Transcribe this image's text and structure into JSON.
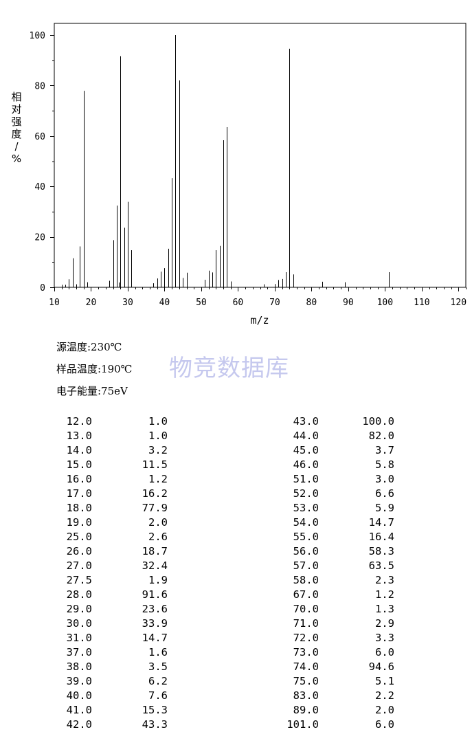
{
  "chart_data": {
    "type": "bar",
    "ylabel": "相对强度/%",
    "xlabel": "m/z",
    "xlim": [
      10,
      122
    ],
    "ylim": [
      0,
      105
    ],
    "xticks": [
      10,
      20,
      30,
      40,
      50,
      60,
      70,
      80,
      90,
      100,
      110,
      120
    ],
    "yticks": [
      0,
      20,
      40,
      60,
      80,
      100
    ],
    "grid": false,
    "peaks": [
      [
        12.0,
        1.0
      ],
      [
        13.0,
        1.0
      ],
      [
        14.0,
        3.2
      ],
      [
        15.0,
        11.5
      ],
      [
        16.0,
        1.2
      ],
      [
        17.0,
        16.2
      ],
      [
        18.0,
        77.9
      ],
      [
        19.0,
        2.0
      ],
      [
        25.0,
        2.6
      ],
      [
        26.0,
        18.7
      ],
      [
        27.0,
        32.4
      ],
      [
        27.5,
        1.9
      ],
      [
        28.0,
        91.6
      ],
      [
        29.0,
        23.6
      ],
      [
        30.0,
        33.9
      ],
      [
        31.0,
        14.7
      ],
      [
        37.0,
        1.6
      ],
      [
        38.0,
        3.5
      ],
      [
        39.0,
        6.2
      ],
      [
        40.0,
        7.6
      ],
      [
        41.0,
        15.3
      ],
      [
        42.0,
        43.3
      ],
      [
        43.0,
        100.0
      ],
      [
        44.0,
        82.0
      ],
      [
        45.0,
        3.7
      ],
      [
        46.0,
        5.8
      ],
      [
        51.0,
        3.0
      ],
      [
        52.0,
        6.6
      ],
      [
        53.0,
        5.9
      ],
      [
        54.0,
        14.7
      ],
      [
        55.0,
        16.4
      ],
      [
        56.0,
        58.3
      ],
      [
        57.0,
        63.5
      ],
      [
        58.0,
        2.3
      ],
      [
        67.0,
        1.2
      ],
      [
        70.0,
        1.3
      ],
      [
        71.0,
        2.9
      ],
      [
        72.0,
        3.3
      ],
      [
        73.0,
        6.0
      ],
      [
        74.0,
        94.6
      ],
      [
        75.0,
        5.1
      ],
      [
        83.0,
        2.2
      ],
      [
        89.0,
        2.0
      ],
      [
        101.0,
        6.0
      ]
    ]
  },
  "conditions": {
    "source_temp": "源温度:230℃",
    "sample_temp": "样品温度:190℃",
    "electron_energy": "电子能量:75eV"
  },
  "watermark": "物竞数据库",
  "table": {
    "left": [
      [
        "12.0",
        "1.0"
      ],
      [
        "13.0",
        "1.0"
      ],
      [
        "14.0",
        "3.2"
      ],
      [
        "15.0",
        "11.5"
      ],
      [
        "16.0",
        "1.2"
      ],
      [
        "17.0",
        "16.2"
      ],
      [
        "18.0",
        "77.9"
      ],
      [
        "19.0",
        "2.0"
      ],
      [
        "25.0",
        "2.6"
      ],
      [
        "26.0",
        "18.7"
      ],
      [
        "27.0",
        "32.4"
      ],
      [
        "27.5",
        "1.9"
      ],
      [
        "28.0",
        "91.6"
      ],
      [
        "29.0",
        "23.6"
      ],
      [
        "30.0",
        "33.9"
      ],
      [
        "31.0",
        "14.7"
      ],
      [
        "37.0",
        "1.6"
      ],
      [
        "38.0",
        "3.5"
      ],
      [
        "39.0",
        "6.2"
      ],
      [
        "40.0",
        "7.6"
      ],
      [
        "41.0",
        "15.3"
      ],
      [
        "42.0",
        "43.3"
      ]
    ],
    "right": [
      [
        "43.0",
        "100.0"
      ],
      [
        "44.0",
        "82.0"
      ],
      [
        "45.0",
        "3.7"
      ],
      [
        "46.0",
        "5.8"
      ],
      [
        "51.0",
        "3.0"
      ],
      [
        "52.0",
        "6.6"
      ],
      [
        "53.0",
        "5.9"
      ],
      [
        "54.0",
        "14.7"
      ],
      [
        "55.0",
        "16.4"
      ],
      [
        "56.0",
        "58.3"
      ],
      [
        "57.0",
        "63.5"
      ],
      [
        "58.0",
        "2.3"
      ],
      [
        "67.0",
        "1.2"
      ],
      [
        "70.0",
        "1.3"
      ],
      [
        "71.0",
        "2.9"
      ],
      [
        "72.0",
        "3.3"
      ],
      [
        "73.0",
        "6.0"
      ],
      [
        "74.0",
        "94.6"
      ],
      [
        "75.0",
        "5.1"
      ],
      [
        "83.0",
        "2.2"
      ],
      [
        "89.0",
        "2.0"
      ],
      [
        "101.0",
        "6.0"
      ]
    ]
  }
}
